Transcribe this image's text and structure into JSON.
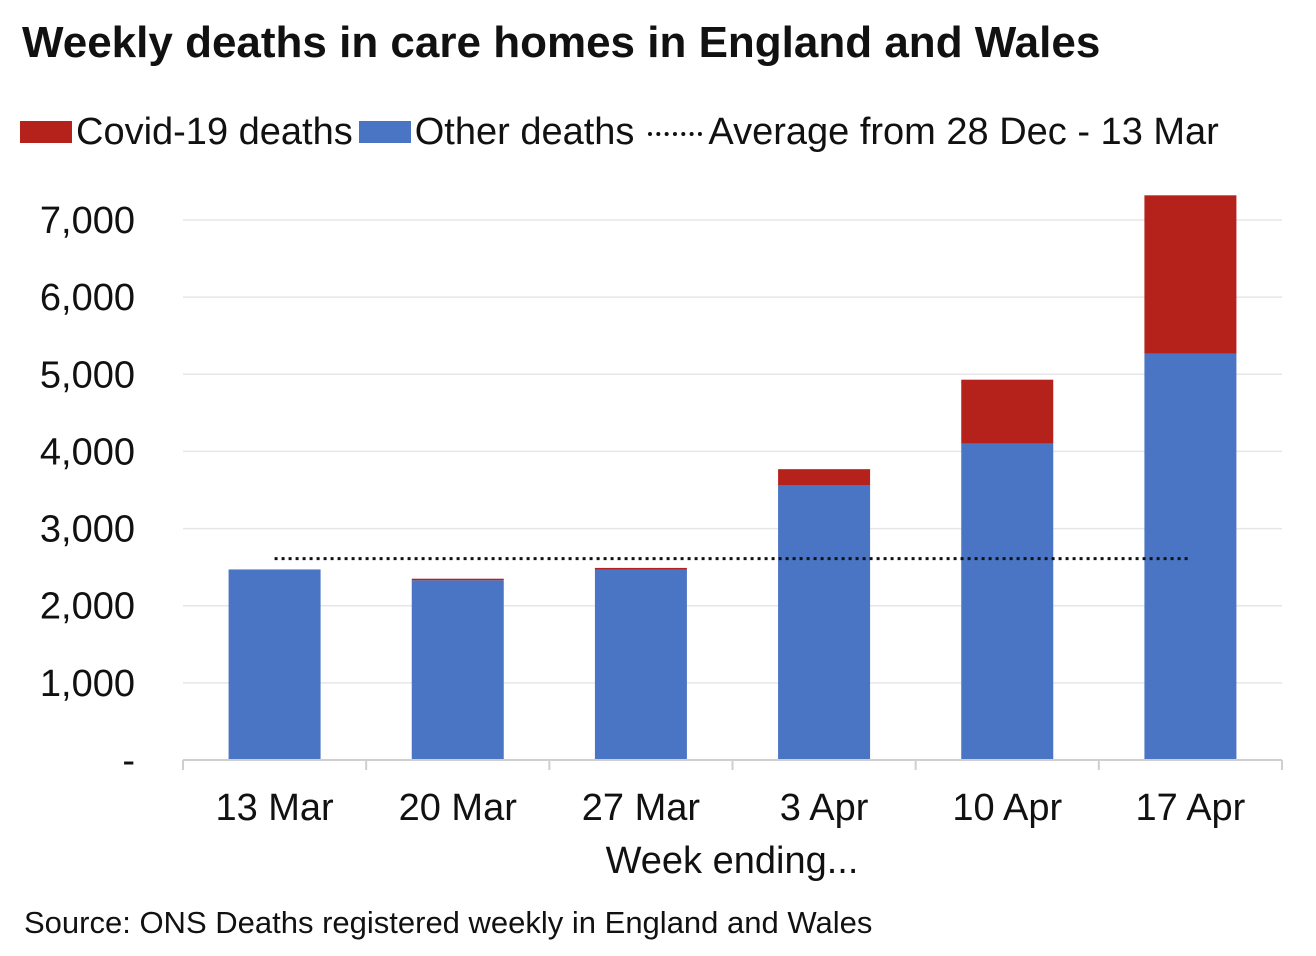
{
  "chart_data": {
    "type": "bar",
    "stacked": true,
    "title": "Weekly deaths in care homes in England and Wales",
    "xlabel": "Week ending...",
    "ylabel": "",
    "ylim": [
      0,
      7000
    ],
    "yticks": [
      0,
      1000,
      2000,
      3000,
      4000,
      5000,
      6000,
      7000
    ],
    "ytick_labels": [
      "-",
      "1,000",
      "2,000",
      "3,000",
      "4,000",
      "5,000",
      "6,000",
      "7,000"
    ],
    "grid": true,
    "legend_position": "top",
    "categories": [
      "13 Mar",
      "20 Mar",
      "27 Mar",
      "3 Apr",
      "10 Apr",
      "17 Apr"
    ],
    "series": [
      {
        "name": "Other deaths",
        "color": "#4a74c4",
        "values": [
          2470,
          2330,
          2470,
          3560,
          4100,
          5270
        ]
      },
      {
        "name": "Covid-19 deaths",
        "color": "#b5221b",
        "values": [
          0,
          20,
          20,
          210,
          830,
          2050
        ]
      }
    ],
    "reference_line": {
      "name": "Average from 28 Dec - 13 Mar",
      "value": 2610,
      "style": "dotted"
    },
    "source": "Source: ONS Deaths registered weekly in England and Wales"
  }
}
